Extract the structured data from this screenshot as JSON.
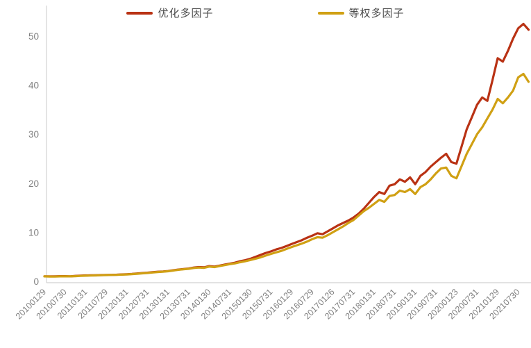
{
  "chart_data": {
    "type": "line",
    "title": "",
    "xlabel": "",
    "ylabel": "",
    "y_ticks": [
      0,
      10,
      20,
      30,
      40,
      50
    ],
    "ylim": [
      0,
      53
    ],
    "grid": false,
    "legend_position": "top",
    "axis_color": "#d9d9d9",
    "tick_label_color": "#808080",
    "points_per_interval": 4,
    "categories": [
      "20100129",
      "20100730",
      "20110131",
      "20110729",
      "20120131",
      "20120731",
      "20130131",
      "20130731",
      "20140130",
      "20140731",
      "20150130",
      "20150731",
      "20160129",
      "20160729",
      "20170126",
      "20170731",
      "20180131",
      "20180731",
      "20190131",
      "20190731",
      "20200123",
      "20200731",
      "20210129",
      "20210730"
    ],
    "series": [
      {
        "name": "优化多因子",
        "color": "#B93214",
        "values": [
          1.0,
          1.0,
          1.0,
          1.05,
          1.05,
          1.0,
          1.1,
          1.15,
          1.2,
          1.22,
          1.25,
          1.28,
          1.3,
          1.32,
          1.35,
          1.4,
          1.45,
          1.5,
          1.6,
          1.68,
          1.75,
          1.85,
          1.95,
          2.0,
          2.1,
          2.25,
          2.4,
          2.5,
          2.6,
          2.8,
          2.9,
          2.85,
          3.1,
          3.0,
          3.2,
          3.4,
          3.6,
          3.8,
          4.1,
          4.3,
          4.6,
          5.0,
          5.4,
          5.8,
          6.1,
          6.5,
          6.8,
          7.2,
          7.6,
          8.0,
          8.4,
          8.9,
          9.3,
          9.8,
          9.6,
          10.2,
          10.8,
          11.4,
          11.9,
          12.4,
          13.0,
          13.8,
          14.8,
          16.0,
          17.2,
          18.2,
          17.8,
          19.5,
          19.8,
          20.8,
          20.3,
          21.2,
          19.8,
          21.5,
          22.3,
          23.4,
          24.3,
          25.2,
          26.0,
          24.3,
          24.0,
          27.5,
          31.0,
          33.5,
          36.0,
          37.5,
          36.8,
          41.0,
          45.5,
          44.8,
          47.0,
          49.5,
          51.6,
          52.5,
          51.3
        ]
      },
      {
        "name": "等权多因子",
        "color": "#D0A013",
        "values": [
          1.0,
          0.98,
          0.97,
          1.0,
          1.02,
          1.0,
          1.05,
          1.1,
          1.15,
          1.18,
          1.2,
          1.24,
          1.27,
          1.3,
          1.32,
          1.36,
          1.4,
          1.48,
          1.55,
          1.63,
          1.7,
          1.8,
          1.9,
          1.97,
          2.05,
          2.2,
          2.35,
          2.45,
          2.55,
          2.72,
          2.8,
          2.75,
          3.0,
          2.9,
          3.1,
          3.3,
          3.5,
          3.65,
          3.9,
          4.1,
          4.35,
          4.6,
          4.9,
          5.25,
          5.6,
          5.9,
          6.2,
          6.6,
          7.0,
          7.35,
          7.7,
          8.1,
          8.6,
          9.0,
          8.9,
          9.4,
          10.0,
          10.6,
          11.2,
          11.9,
          12.5,
          13.4,
          14.3,
          15.0,
          15.8,
          16.6,
          16.2,
          17.4,
          17.6,
          18.5,
          18.2,
          18.8,
          17.8,
          19.2,
          19.8,
          20.8,
          22.0,
          23.0,
          23.2,
          21.5,
          21.0,
          23.5,
          26.0,
          28.0,
          30.0,
          31.4,
          33.2,
          35.0,
          37.2,
          36.3,
          37.5,
          38.9,
          41.6,
          42.3,
          40.7
        ]
      }
    ]
  }
}
